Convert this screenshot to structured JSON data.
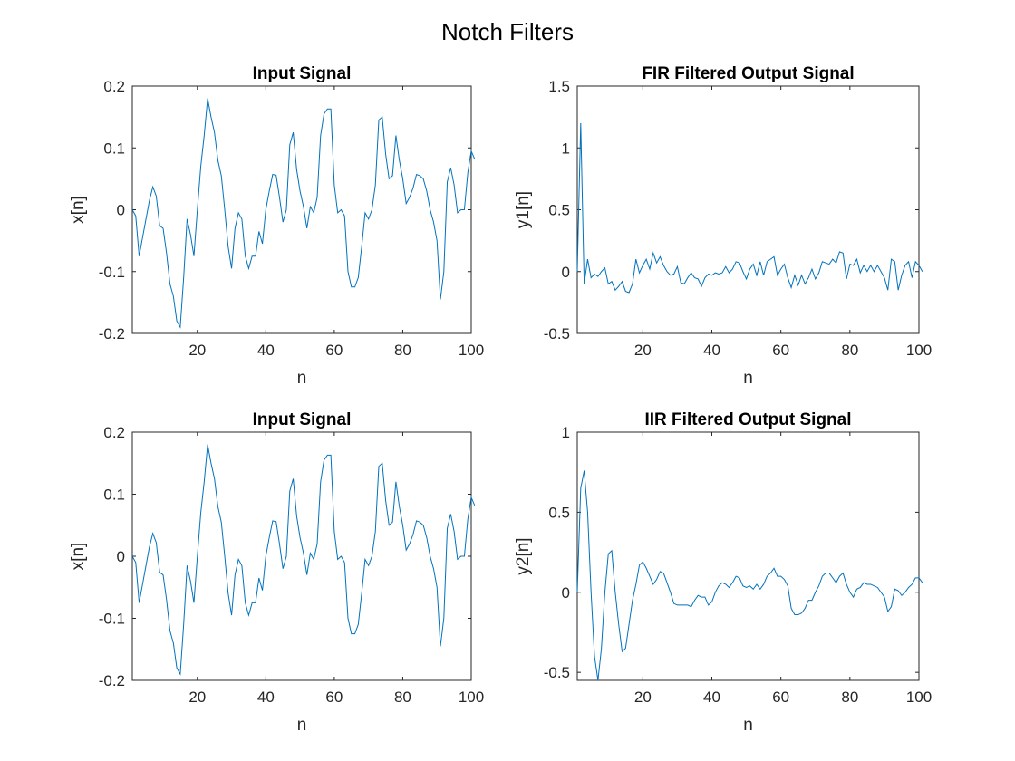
{
  "figure": {
    "title": "Notch Filters",
    "line_color": "#0072BD"
  },
  "chart_data": [
    {
      "type": "line",
      "title": "Input Signal",
      "xlabel": "n",
      "ylabel": "x[n]",
      "xlim": [
        1,
        100
      ],
      "ylim": [
        -0.2,
        0.2
      ],
      "xticks": [
        20,
        40,
        60,
        80,
        100
      ],
      "xtick_labels": [
        "20",
        "40",
        "60",
        "80",
        "100"
      ],
      "yticks": [
        -0.2,
        -0.1,
        0,
        0.1,
        0.2
      ],
      "ytick_labels": [
        "-0.2",
        "-0.1",
        "0",
        "0.1",
        "0.2"
      ],
      "grid": false,
      "x_start": 1,
      "x_step": 1,
      "values": [
        0.0,
        -0.01,
        -0.075,
        -0.045,
        -0.015,
        0.015,
        0.037,
        0.022,
        -0.026,
        -0.03,
        -0.07,
        -0.12,
        -0.14,
        -0.18,
        -0.19,
        -0.11,
        -0.015,
        -0.04,
        -0.075,
        0.0,
        0.07,
        0.12,
        0.18,
        0.15,
        0.125,
        0.08,
        0.055,
        0.0,
        -0.06,
        -0.095,
        -0.03,
        -0.005,
        -0.015,
        -0.075,
        -0.095,
        -0.075,
        -0.075,
        -0.035,
        -0.055,
        0.0,
        0.03,
        0.057,
        0.056,
        0.02,
        -0.02,
        0.0,
        0.105,
        0.125,
        0.065,
        0.03,
        0.005,
        -0.03,
        0.005,
        -0.005,
        0.02,
        0.12,
        0.155,
        0.163,
        0.163,
        0.04,
        -0.005,
        0.0,
        -0.01,
        -0.1,
        -0.125,
        -0.125,
        -0.11,
        -0.06,
        -0.005,
        -0.015,
        0.0,
        0.04,
        0.145,
        0.15,
        0.09,
        0.05,
        0.055,
        0.12,
        0.08,
        0.05,
        0.01,
        0.02,
        0.035,
        0.057,
        0.055,
        0.05,
        0.03,
        0.0,
        -0.02,
        -0.05,
        -0.145,
        -0.1,
        0.045,
        0.068,
        0.04,
        -0.005,
        0.0,
        0.0,
        0.06,
        0.095,
        0.082
      ]
    },
    {
      "type": "line",
      "title": "FIR Filtered Output Signal",
      "xlabel": "n",
      "ylabel": "y1[n]",
      "xlim": [
        1,
        100
      ],
      "ylim": [
        -0.5,
        1.5
      ],
      "xticks": [
        20,
        40,
        60,
        80,
        100
      ],
      "xtick_labels": [
        "20",
        "40",
        "60",
        "80",
        "100"
      ],
      "yticks": [
        -0.5,
        0,
        0.5,
        1,
        1.5
      ],
      "ytick_labels": [
        "-0.5",
        "0",
        "0.5",
        "1",
        "1.5"
      ],
      "grid": false,
      "x_start": 1,
      "x_step": 1,
      "values": [
        0.0,
        1.2,
        -0.1,
        0.1,
        -0.05,
        -0.02,
        -0.04,
        0.0,
        0.03,
        -0.1,
        -0.08,
        -0.15,
        -0.12,
        -0.08,
        -0.16,
        -0.17,
        -0.1,
        0.1,
        -0.01,
        0.05,
        0.1,
        0.02,
        0.15,
        0.07,
        0.12,
        0.05,
        0.0,
        -0.03,
        -0.02,
        0.04,
        -0.09,
        -0.1,
        -0.05,
        -0.01,
        -0.05,
        -0.06,
        -0.12,
        -0.05,
        -0.02,
        -0.03,
        -0.01,
        -0.02,
        -0.01,
        0.04,
        -0.01,
        0.02,
        0.08,
        0.07,
        0.0,
        -0.06,
        0.02,
        0.06,
        -0.03,
        0.08,
        -0.03,
        0.08,
        0.1,
        0.12,
        -0.03,
        0.02,
        0.06,
        -0.05,
        -0.13,
        -0.03,
        -0.11,
        -0.03,
        -0.1,
        -0.05,
        0.02,
        -0.06,
        -0.01,
        0.08,
        0.07,
        0.06,
        0.1,
        0.07,
        0.16,
        0.15,
        -0.06,
        0.06,
        0.05,
        0.1,
        -0.01,
        0.05,
        0.0,
        0.05,
        0.0,
        0.05,
        0.0,
        -0.05,
        -0.15,
        0.1,
        0.08,
        -0.15,
        -0.03,
        0.05,
        0.08,
        -0.05,
        0.08,
        0.05,
        0.0
      ]
    },
    {
      "type": "line",
      "title": "Input Signal",
      "xlabel": "n",
      "ylabel": "x[n]",
      "xlim": [
        1,
        100
      ],
      "ylim": [
        -0.2,
        0.2
      ],
      "xticks": [
        20,
        40,
        60,
        80,
        100
      ],
      "xtick_labels": [
        "20",
        "40",
        "60",
        "80",
        "100"
      ],
      "yticks": [
        -0.2,
        -0.1,
        0,
        0.1,
        0.2
      ],
      "ytick_labels": [
        "-0.2",
        "-0.1",
        "0",
        "0.1",
        "0.2"
      ],
      "grid": false,
      "x_start": 1,
      "x_step": 1,
      "values": [
        0.0,
        -0.01,
        -0.075,
        -0.045,
        -0.015,
        0.015,
        0.037,
        0.022,
        -0.026,
        -0.03,
        -0.07,
        -0.12,
        -0.14,
        -0.18,
        -0.19,
        -0.11,
        -0.015,
        -0.04,
        -0.075,
        0.0,
        0.07,
        0.12,
        0.18,
        0.15,
        0.125,
        0.08,
        0.055,
        0.0,
        -0.06,
        -0.095,
        -0.03,
        -0.005,
        -0.015,
        -0.075,
        -0.095,
        -0.075,
        -0.075,
        -0.035,
        -0.055,
        0.0,
        0.03,
        0.057,
        0.056,
        0.02,
        -0.02,
        0.0,
        0.105,
        0.125,
        0.065,
        0.03,
        0.005,
        -0.03,
        0.005,
        -0.005,
        0.02,
        0.12,
        0.155,
        0.163,
        0.163,
        0.04,
        -0.005,
        0.0,
        -0.01,
        -0.1,
        -0.125,
        -0.125,
        -0.11,
        -0.06,
        -0.005,
        -0.015,
        0.0,
        0.04,
        0.145,
        0.15,
        0.09,
        0.05,
        0.055,
        0.12,
        0.08,
        0.05,
        0.01,
        0.02,
        0.035,
        0.057,
        0.055,
        0.05,
        0.03,
        0.0,
        -0.02,
        -0.05,
        -0.145,
        -0.1,
        0.045,
        0.068,
        0.04,
        -0.005,
        0.0,
        0.0,
        0.06,
        0.095,
        0.082
      ]
    },
    {
      "type": "line",
      "title": "IIR Filtered Output Signal",
      "xlabel": "n",
      "ylabel": "y2[n]",
      "xlim": [
        1,
        100
      ],
      "ylim": [
        -0.55,
        1
      ],
      "xticks": [
        20,
        40,
        60,
        80,
        100
      ],
      "xtick_labels": [
        "20",
        "40",
        "60",
        "80",
        "100"
      ],
      "yticks": [
        -0.5,
        0,
        0.5,
        1
      ],
      "ytick_labels": [
        "-0.5",
        "0",
        "0.5",
        "1"
      ],
      "grid": false,
      "x_start": 1,
      "x_step": 1,
      "values": [
        0.0,
        0.65,
        0.76,
        0.5,
        0.0,
        -0.4,
        -0.55,
        -0.35,
        0.0,
        0.24,
        0.26,
        0.0,
        -0.2,
        -0.37,
        -0.35,
        -0.2,
        -0.05,
        0.05,
        0.17,
        0.19,
        0.15,
        0.1,
        0.05,
        0.08,
        0.13,
        0.12,
        0.06,
        0.0,
        -0.07,
        -0.08,
        -0.08,
        -0.08,
        -0.08,
        -0.09,
        -0.05,
        -0.02,
        -0.03,
        -0.03,
        -0.08,
        -0.06,
        0.0,
        0.04,
        0.06,
        0.05,
        0.03,
        0.06,
        0.1,
        0.09,
        0.04,
        0.03,
        0.04,
        0.02,
        0.05,
        0.02,
        0.05,
        0.1,
        0.12,
        0.15,
        0.1,
        0.1,
        0.08,
        0.04,
        -0.1,
        -0.14,
        -0.14,
        -0.13,
        -0.1,
        -0.05,
        -0.05,
        0.0,
        0.04,
        0.1,
        0.12,
        0.12,
        0.09,
        0.06,
        0.1,
        0.12,
        0.05,
        0.0,
        -0.03,
        0.02,
        0.03,
        0.06,
        0.05,
        0.05,
        0.04,
        0.03,
        0.0,
        -0.03,
        -0.12,
        -0.09,
        0.02,
        0.01,
        -0.02,
        0.0,
        0.03,
        0.05,
        0.09,
        0.09,
        0.06
      ]
    }
  ]
}
